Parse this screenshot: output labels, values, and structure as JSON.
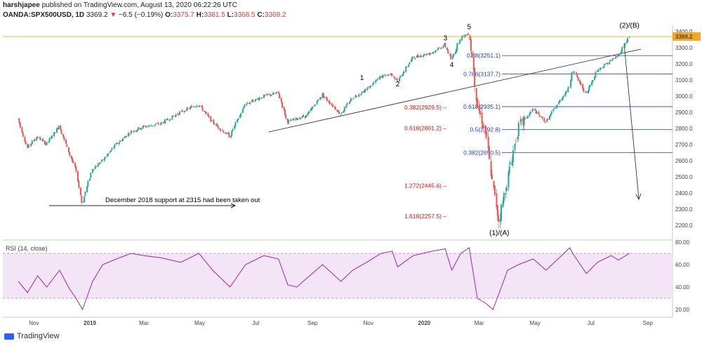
{
  "header": {
    "publisher": "harshjapee",
    "published_text": "published on TradingView.com, August 13, 2020 06:22:26 UTC",
    "symbol": "OANDA:SPX500USD, 1D",
    "last": "3369.2",
    "change": "−6.5 (−0.19%)",
    "open_label": "O:",
    "open": "3375.7",
    "high_label": "H:",
    "high": "3381.5",
    "low_label": "L:",
    "low": "3368.5",
    "close_label": "C:",
    "close": "3369.2"
  },
  "chart_data": {
    "type": "line",
    "title": "",
    "y_axis": {
      "ticks": [
        2200,
        2300,
        2400,
        2500,
        2600,
        2700,
        2800,
        2900,
        3000,
        3100,
        3200,
        3300,
        3400
      ],
      "range": [
        2130,
        3470
      ]
    },
    "x_axis": {
      "ticks": [
        "Nov",
        "2019",
        "Mar",
        "May",
        "Jul",
        "Sep",
        "Nov",
        "2020",
        "Mar",
        "May",
        "Jul",
        "Sep"
      ]
    },
    "price_series": {
      "name": "",
      "x": [
        "2018-10-15",
        "2018-10-25",
        "2018-11-05",
        "2018-11-15",
        "2018-11-29",
        "2018-12-10",
        "2018-12-17",
        "2018-12-24",
        "2019-01-04",
        "2019-01-15",
        "2019-01-30",
        "2019-02-15",
        "2019-03-01",
        "2019-03-20",
        "2019-04-10",
        "2019-04-30",
        "2019-05-15",
        "2019-06-03",
        "2019-06-20",
        "2019-07-10",
        "2019-07-26",
        "2019-08-05",
        "2019-08-15",
        "2019-08-26",
        "2019-09-12",
        "2019-10-02",
        "2019-10-15",
        "2019-10-30",
        "2019-11-15",
        "2019-11-27",
        "2019-12-03",
        "2019-12-20",
        "2020-01-10",
        "2020-01-24",
        "2020-01-31",
        "2020-02-10",
        "2020-02-19",
        "2020-02-24",
        "2020-02-28",
        "2020-03-09",
        "2020-03-16",
        "2020-03-23",
        "2020-04-01",
        "2020-04-13",
        "2020-04-29",
        "2020-05-13",
        "2020-06-08",
        "2020-06-11",
        "2020-06-26",
        "2020-07-08",
        "2020-07-23",
        "2020-07-31",
        "2020-08-12"
      ],
      "y": [
        2860,
        2680,
        2750,
        2700,
        2820,
        2640,
        2550,
        2330,
        2550,
        2600,
        2700,
        2780,
        2810,
        2830,
        2900,
        2950,
        2840,
        2750,
        2950,
        3000,
        3020,
        2840,
        2860,
        2880,
        3010,
        2890,
        2990,
        3040,
        3120,
        3140,
        3090,
        3240,
        3270,
        3320,
        3225,
        3360,
        3390,
        3200,
        2950,
        2760,
        2450,
        2230,
        2480,
        2800,
        2920,
        2840,
        3060,
        3170,
        3010,
        3160,
        3220,
        3250,
        3370
      ]
    },
    "fib_levels_blue": [
      {
        "label": "0.88(3251.1)",
        "value": 3251.1
      },
      {
        "label": "0.786(3137.7)",
        "value": 3137.7
      },
      {
        "label": "0.618(2935.1)",
        "value": 2935.1
      },
      {
        "label": "0.5(2792.8)",
        "value": 2792.8
      },
      {
        "label": "0.382(2650.5)",
        "value": 2650.5
      }
    ],
    "fib_levels_red": [
      {
        "label": "0.382(2929.5)",
        "value": 2929.5
      },
      {
        "label": "0.618(2801.2)",
        "value": 2801.2
      },
      {
        "label": "1.272(2445.6)",
        "value": 2445.6
      },
      {
        "label": "1.618(2257.5)",
        "value": 2257.5
      }
    ],
    "price_line": {
      "value": 3369.2,
      "label": "3369.2",
      "color": "#f5a623"
    },
    "wave_labels": [
      {
        "text": "1",
        "date": "2019-10-25",
        "price": 3100
      },
      {
        "text": "2",
        "date": "2019-12-03",
        "price": 3060
      },
      {
        "text": "3",
        "date": "2020-01-24",
        "price": 3345
      },
      {
        "text": "4",
        "date": "2020-01-31",
        "price": 3180
      },
      {
        "text": "5",
        "date": "2020-02-19",
        "price": 3415
      },
      {
        "text": "(1)/(A)",
        "date": "2020-03-23",
        "price": 2140
      },
      {
        "text": "(2)/(B)",
        "date": "2020-08-12",
        "price": 3425
      }
    ],
    "annotation": "December 2018 support at 2315 had been taken out",
    "rsi": {
      "label": "RSI (14, close)",
      "ticks": [
        20,
        40,
        60,
        80
      ],
      "band": [
        30,
        70
      ],
      "values": [
        45,
        35,
        50,
        40,
        55,
        38,
        30,
        20,
        45,
        60,
        65,
        70,
        68,
        66,
        62,
        70,
        55,
        40,
        60,
        68,
        65,
        42,
        40,
        48,
        60,
        45,
        55,
        62,
        70,
        72,
        58,
        68,
        72,
        74,
        55,
        70,
        75,
        50,
        30,
        25,
        20,
        35,
        55,
        60,
        65,
        55,
        75,
        70,
        52,
        62,
        68,
        64,
        70
      ]
    },
    "colors": {
      "up": "#26a69a",
      "down": "#ef5350",
      "rsi": "#9c27b0",
      "band": "#f3e5f5",
      "fib": "#1e3df5",
      "fib_red": "#e01010"
    }
  },
  "footer": {
    "brand": "TradingView"
  }
}
